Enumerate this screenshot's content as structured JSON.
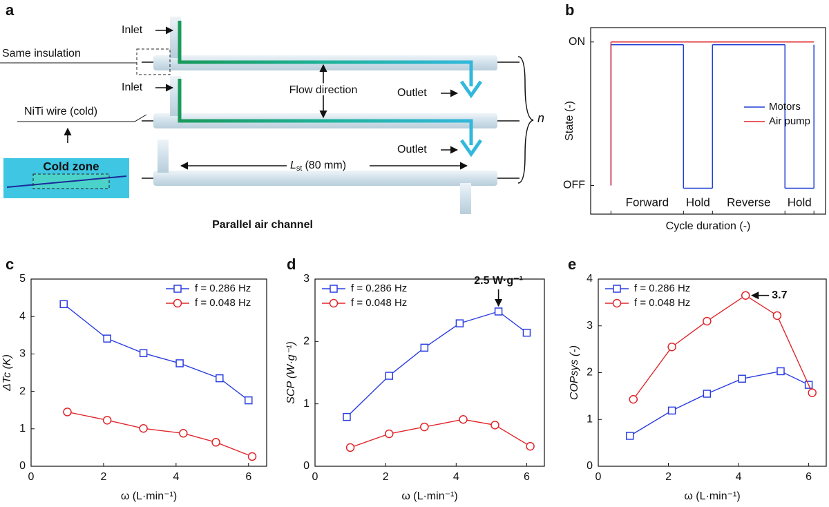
{
  "panels": [
    "a",
    "b",
    "c",
    "d",
    "e"
  ],
  "diagram": {
    "inlet_top": "Inlet",
    "same_insulation": "Same insulation",
    "inlet_mid": "Inlet",
    "niti_wire": "NiTi wire (cold)",
    "cold_zone": "Cold zone",
    "flow_direction": "Flow direction",
    "outlet_top": "Outlet",
    "outlet_mid": "Outlet",
    "length": {
      "symbol": "L",
      "subscript": "st",
      "text": "(80 mm)"
    },
    "n": "n",
    "caption": "Parallel air channel"
  },
  "chart_data": [
    {
      "type": "step",
      "x_label": "Cycle duration (-)",
      "y_label": "State (-)",
      "phases": [
        {
          "label": "Forward",
          "color": "#1a73c8"
        },
        {
          "label": "Hold",
          "color": "#111111"
        },
        {
          "label": "Reverse",
          "color": "#d62728"
        },
        {
          "label": "Hold",
          "color": "#111111"
        }
      ],
      "x_edges": [
        0,
        2.5,
        3.5,
        6,
        7
      ],
      "xlim": [
        -0.7,
        7.4
      ],
      "ylim": [
        -0.2,
        1.1
      ],
      "yticks": [
        {
          "value": 0,
          "label": "OFF"
        },
        {
          "value": 1,
          "label": "ON"
        }
      ],
      "legend": "right",
      "series": [
        {
          "name": "Motors",
          "color": "#1f3fd6",
          "values": [
            1,
            0,
            1,
            0
          ]
        },
        {
          "name": "Air pump",
          "color": "#e0262b",
          "values": [
            1,
            1,
            1,
            1
          ]
        }
      ]
    },
    {
      "type": "line",
      "x_label": "ω (L·min⁻¹)",
      "y_label": "ΔTc (K)",
      "xlim": [
        0,
        6.5
      ],
      "ylim": [
        0,
        5
      ],
      "xticks": [
        0,
        2,
        4,
        6
      ],
      "yticks": [
        0,
        1,
        2,
        3,
        4,
        5
      ],
      "legend": "upper right",
      "series": [
        {
          "name": "f = 0.286 Hz",
          "color": "#2b3ee0",
          "marker": "square",
          "x": [
            0.9,
            2.1,
            3.1,
            4.1,
            5.2,
            6.0
          ],
          "values": [
            4.33,
            3.41,
            3.02,
            2.75,
            2.35,
            1.76
          ]
        },
        {
          "name": "f = 0.048 Hz",
          "color": "#e0262b",
          "marker": "circle",
          "x": [
            1.0,
            2.1,
            3.1,
            4.2,
            5.1,
            6.1
          ],
          "values": [
            1.45,
            1.23,
            1.01,
            0.88,
            0.64,
            0.26
          ]
        }
      ]
    },
    {
      "type": "line",
      "x_label": "ω (L·min⁻¹)",
      "y_label": "SCP (W·g⁻¹)",
      "xlim": [
        0,
        6.5
      ],
      "ylim": [
        0,
        3
      ],
      "xticks": [
        0,
        2,
        4,
        6
      ],
      "yticks": [
        0,
        1,
        2,
        3
      ],
      "legend": "upper left",
      "annotation": {
        "text": "2.5 W·g⁻¹",
        "series": 0,
        "index": 4,
        "side": "above"
      },
      "series": [
        {
          "name": "f = 0.286 Hz",
          "color": "#2b3ee0",
          "marker": "square",
          "x": [
            0.9,
            2.1,
            3.1,
            4.1,
            5.2,
            6.0
          ],
          "values": [
            0.79,
            1.45,
            1.9,
            2.29,
            2.48,
            2.14
          ]
        },
        {
          "name": "f = 0.048 Hz",
          "color": "#e0262b",
          "marker": "circle",
          "x": [
            1.0,
            2.1,
            3.1,
            4.2,
            5.1,
            6.1
          ],
          "values": [
            0.3,
            0.52,
            0.63,
            0.75,
            0.66,
            0.32
          ]
        }
      ]
    },
    {
      "type": "line",
      "x_label": "ω (L·min⁻¹)",
      "y_label": "COPsys (-)",
      "xlim": [
        0,
        6.5
      ],
      "ylim": [
        0,
        4
      ],
      "xticks": [
        0,
        2,
        4,
        6
      ],
      "yticks": [
        0,
        1,
        2,
        3,
        4
      ],
      "legend": "upper left",
      "annotation": {
        "text": "3.7",
        "series": 1,
        "index": 3,
        "side": "right"
      },
      "series": [
        {
          "name": "f = 0.286 Hz",
          "color": "#2b3ee0",
          "marker": "square",
          "x": [
            0.9,
            2.1,
            3.1,
            4.1,
            5.2,
            6.0
          ],
          "values": [
            0.65,
            1.19,
            1.55,
            1.87,
            2.03,
            1.74
          ]
        },
        {
          "name": "f = 0.048 Hz",
          "color": "#e0262b",
          "marker": "circle",
          "x": [
            1.0,
            2.1,
            3.1,
            4.2,
            5.1,
            6.1
          ],
          "values": [
            1.43,
            2.55,
            3.1,
            3.65,
            3.22,
            1.57
          ]
        }
      ]
    }
  ]
}
